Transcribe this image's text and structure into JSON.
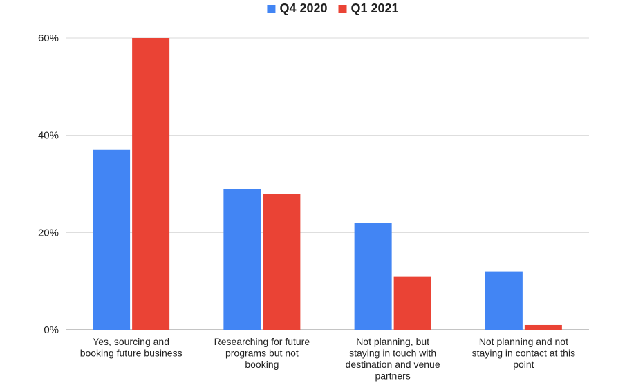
{
  "chart_data": {
    "type": "bar",
    "categories": [
      [
        "Yes, sourcing and",
        "booking future business"
      ],
      [
        "Researching for future",
        "programs but not",
        "booking"
      ],
      [
        "Not planning, but",
        "staying in touch with",
        "destination and venue",
        "partners"
      ],
      [
        "Not planning and not",
        "staying in contact at this",
        "point"
      ]
    ],
    "series": [
      {
        "name": "Q4 2020",
        "color": "#4285f4",
        "values": [
          37,
          29,
          22,
          12
        ]
      },
      {
        "name": "Q1 2021",
        "color": "#ea4335",
        "values": [
          60,
          28,
          11,
          1
        ]
      }
    ],
    "y_ticks": [
      "0%",
      "20%",
      "40%",
      "60%"
    ],
    "y_tick_values": [
      0,
      20,
      40,
      60
    ],
    "ylim": [
      0,
      60
    ],
    "grid": true,
    "legend_position": "top-center"
  }
}
